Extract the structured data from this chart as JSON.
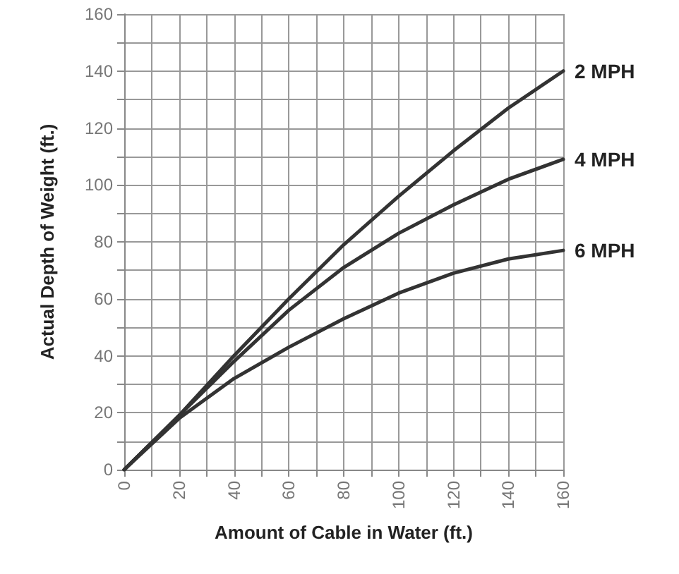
{
  "chart_data": {
    "type": "line",
    "xlabel": "Amount of Cable in Water (ft.)",
    "ylabel": "Actual Depth of Weight (ft.)",
    "x": [
      0,
      20,
      40,
      60,
      80,
      100,
      120,
      140,
      160
    ],
    "series": [
      {
        "name": "2 MPH",
        "color": "#333333",
        "values": [
          0,
          19,
          40,
          60,
          79,
          96,
          112,
          127,
          140
        ]
      },
      {
        "name": "4 MPH",
        "color": "#333333",
        "values": [
          0,
          19,
          38,
          56,
          71,
          83,
          93,
          102,
          109
        ]
      },
      {
        "name": "6 MPH",
        "color": "#333333",
        "values": [
          0,
          18,
          32,
          43,
          53,
          62,
          69,
          74,
          77
        ]
      }
    ],
    "xlim": [
      0,
      160
    ],
    "ylim": [
      0,
      160
    ],
    "xticks": [
      0,
      {
        "value": 10,
        "label": null
      },
      20,
      {
        "value": 30,
        "label": null
      },
      40,
      {
        "value": 50,
        "label": null
      },
      60,
      {
        "value": 70,
        "label": null
      },
      80,
      {
        "value": 90,
        "label": null
      },
      100,
      {
        "value": 110,
        "label": null
      },
      120,
      {
        "value": 130,
        "label": null
      },
      140,
      {
        "value": 150,
        "label": null
      },
      160
    ],
    "yticks": [
      0,
      {
        "value": 10,
        "label": null
      },
      20,
      {
        "value": 30,
        "label": null
      },
      40,
      {
        "value": 50,
        "label": null
      },
      60,
      {
        "value": 70,
        "label": null
      },
      80,
      {
        "value": 90,
        "label": null
      },
      100,
      {
        "value": 110,
        "label": null
      },
      120,
      {
        "value": 130,
        "label": null
      },
      140,
      {
        "value": 150,
        "label": null
      },
      160
    ],
    "grid": true,
    "legend": false,
    "marker": "none",
    "line_style": "solid"
  }
}
